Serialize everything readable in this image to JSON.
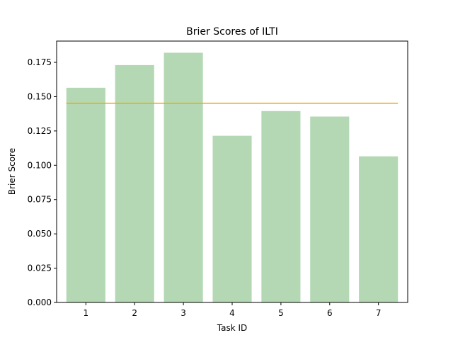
{
  "chart_data": {
    "type": "bar",
    "title": "Brier Scores of ILTI",
    "xlabel": "Task ID",
    "ylabel": "Brier Score",
    "categories": [
      "1",
      "2",
      "3",
      "4",
      "5",
      "6",
      "7"
    ],
    "values": [
      0.1565,
      0.173,
      0.182,
      0.1215,
      0.1395,
      0.1355,
      0.1065
    ],
    "reference_line": 0.1452,
    "ylim": [
      0,
      0.1905
    ],
    "yticks": [
      "0.000",
      "0.025",
      "0.050",
      "0.075",
      "0.100",
      "0.125",
      "0.150",
      "0.175"
    ],
    "ytick_values": [
      0,
      0.025,
      0.05,
      0.075,
      0.1,
      0.125,
      0.15,
      0.175
    ],
    "grid": false,
    "colors": {
      "bar": "#b3d8b3",
      "reference_line": "#f2a900",
      "axis": "#000000"
    }
  }
}
